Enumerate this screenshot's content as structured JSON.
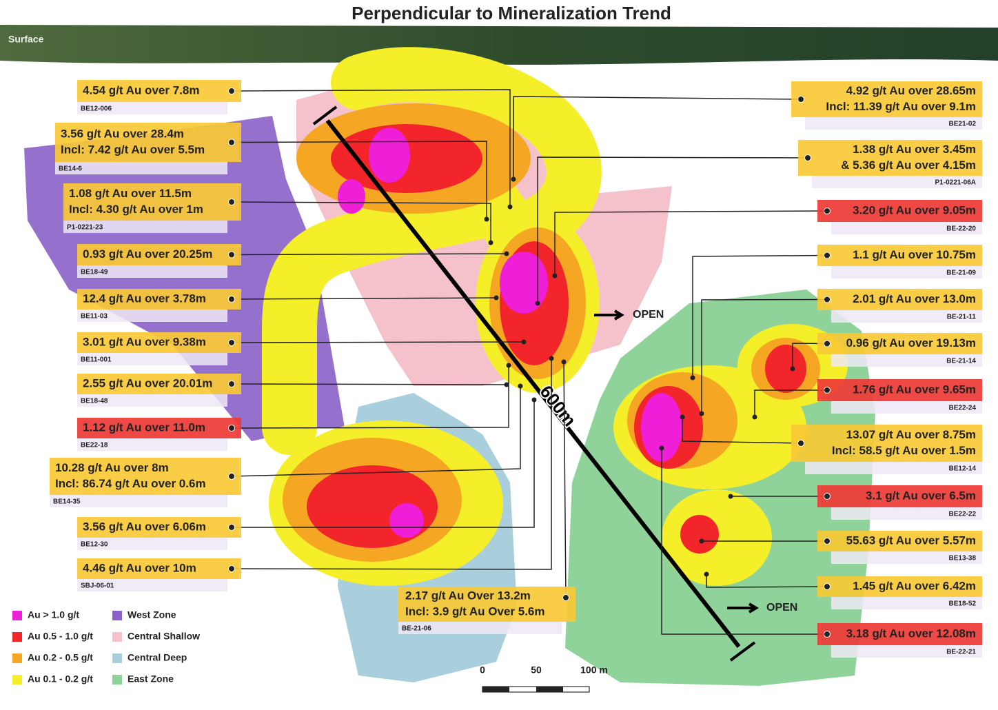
{
  "title": "Perpendicular to Mineralization Trend",
  "surface_label": "Surface",
  "distance_label": "600m",
  "open_labels": [
    "OPEN",
    "OPEN"
  ],
  "scale_labels": [
    "0",
    "50",
    "100 m"
  ],
  "callouts": [
    {
      "lines": [
        "4.54 g/t Au over 7.8m"
      ],
      "hole": "BE12-006",
      "color": "#f9c935"
    },
    {
      "lines": [
        "3.56 g/t Au over 28.4m",
        "Incl: 7.42 g/t Au over 5.5m"
      ],
      "hole": "BE14-6",
      "color": "#f9c935"
    },
    {
      "lines": [
        "1.08 g/t Au over 11.5m",
        "Incl: 4.30 g/t Au over 1m"
      ],
      "hole": "P1-0221-23",
      "color": "#f9c935"
    },
    {
      "lines": [
        "0.93 g/t Au over 20.25m"
      ],
      "hole": "BE18-49",
      "color": "#f9c935"
    },
    {
      "lines": [
        "12.4 g/t Au over 3.78m"
      ],
      "hole": "BE11-03",
      "color": "#f9c935"
    },
    {
      "lines": [
        "3.01 g/t Au over 9.38m"
      ],
      "hole": "BE11-001",
      "color": "#f9c935"
    },
    {
      "lines": [
        "2.55 g/t Au over 20.01m"
      ],
      "hole": "BE18-48",
      "color": "#f9c935"
    },
    {
      "lines": [
        "1.12 g/t Au over 11.0m"
      ],
      "hole": "BE22-18",
      "color": "#ee3a35"
    },
    {
      "lines": [
        "10.28 g/t Au over 8m",
        "Incl: 86.74 g/t Au over 0.6m"
      ],
      "hole": "BE14-35",
      "color": "#f9c935"
    },
    {
      "lines": [
        "3.56 g/t Au over 6.06m"
      ],
      "hole": "BE12-30",
      "color": "#f9c935"
    },
    {
      "lines": [
        "4.46 g/t Au over 10m"
      ],
      "hole": "SBJ-06-01",
      "color": "#f9c935"
    },
    {
      "lines": [
        "2.17 g/t Au Over 13.2m",
        "Incl: 3.9 g/t Au Over 5.6m"
      ],
      "hole": "BE-21-06",
      "color": "#f9c935"
    },
    {
      "lines": [
        "4.92 g/t Au over 28.65m",
        "Incl: 11.39 g/t Au over 9.1m"
      ],
      "hole": "BE21-02",
      "color": "#f9c935"
    },
    {
      "lines": [
        "1.38 g/t Au over 3.45m",
        "& 5.36 g/t Au over 4.15m"
      ],
      "hole": "P1-0221-06A",
      "color": "#f9c935"
    },
    {
      "lines": [
        "3.20 g/t Au over 9.05m"
      ],
      "hole": "BE-22-20",
      "color": "#ee3a35"
    },
    {
      "lines": [
        "1.1 g/t Au over 10.75m"
      ],
      "hole": "BE-21-09",
      "color": "#f9c935"
    },
    {
      "lines": [
        "2.01 g/t Au over 13.0m"
      ],
      "hole": "BE-21-11",
      "color": "#f9c935"
    },
    {
      "lines": [
        "0.96 g/t Au over 19.13m"
      ],
      "hole": "BE-21-14",
      "color": "#f9c935"
    },
    {
      "lines": [
        "1.76 g/t Au over 9.65m"
      ],
      "hole": "BE22-24",
      "color": "#ee3a35"
    },
    {
      "lines": [
        "13.07 g/t Au over 8.75m",
        "Incl: 58.5 g/t Au over 1.5m"
      ],
      "hole": "BE12-14",
      "color": "#f9c935"
    },
    {
      "lines": [
        "3.1 g/t Au over 6.5m"
      ],
      "hole": "BE22-22",
      "color": "#ee3a35"
    },
    {
      "lines": [
        "55.63 g/t Au over 5.57m"
      ],
      "hole": "BE13-38",
      "color": "#f9c935"
    },
    {
      "lines": [
        "1.45 g/t Au over 6.42m"
      ],
      "hole": "BE18-52",
      "color": "#f9c935"
    },
    {
      "lines": [
        "3.18 g/t Au over 12.08m"
      ],
      "hole": "BE-22-21",
      "color": "#ee3a35"
    }
  ],
  "legend": [
    {
      "label": "Au > 1.0 g/t",
      "color": "#ee1fd6"
    },
    {
      "label": "Au 0.5 - 1.0 g/t",
      "color": "#f2252a"
    },
    {
      "label": "Au 0.2 - 0.5 g/t",
      "color": "#f5a623"
    },
    {
      "label": "Au 0.1 - 0.2 g/t",
      "color": "#f5ef2a"
    },
    {
      "label": "West Zone",
      "color": "#8a62c8"
    },
    {
      "label": "Central Shallow",
      "color": "#f5c2cc"
    },
    {
      "label": "Central Deep",
      "color": "#a9cfdc"
    },
    {
      "label": "East Zone",
      "color": "#8fd39a"
    }
  ]
}
